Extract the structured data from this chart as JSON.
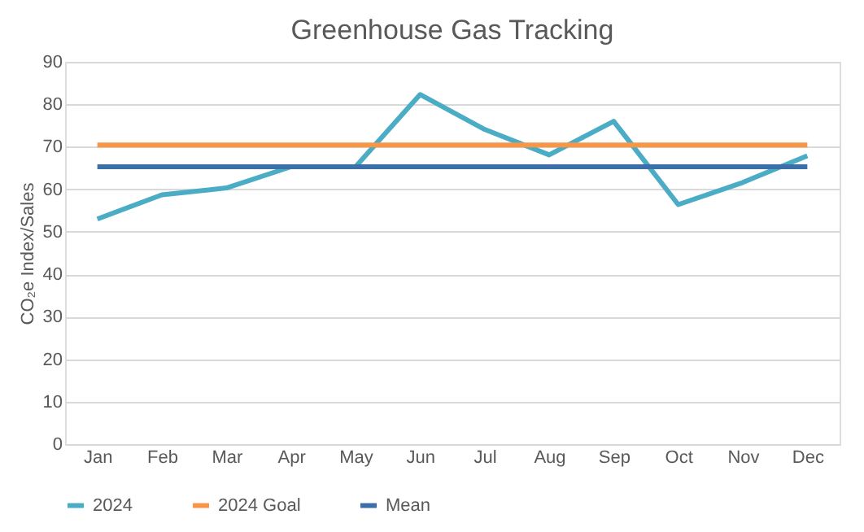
{
  "chart_data": {
    "type": "line",
    "title": "Greenhouse Gas Tracking",
    "ylabel": "CO₂e Index/Sales",
    "categories": [
      "Jan",
      "Feb",
      "Mar",
      "Apr",
      "May",
      "Jun",
      "Jul",
      "Aug",
      "Sep",
      "Oct",
      "Nov",
      "Dec"
    ],
    "series": [
      {
        "name": "2024",
        "color": "#4bacc6",
        "values": [
          53,
          58.7,
          60.3,
          65.3,
          65.3,
          82.3,
          74.1,
          68.1,
          76,
          56.4,
          61.6,
          67.9
        ]
      },
      {
        "name": "2024 Goal",
        "color": "#f79646",
        "values": [
          70.4,
          70.4,
          70.4,
          70.4,
          70.4,
          70.4,
          70.4,
          70.4,
          70.4,
          70.4,
          70.4,
          70.4
        ]
      },
      {
        "name": "Mean",
        "color": "#3c6ea8",
        "values": [
          65.3,
          65.3,
          65.3,
          65.3,
          65.3,
          65.3,
          65.3,
          65.3,
          65.3,
          65.3,
          65.3,
          65.3
        ]
      }
    ],
    "ylim": [
      0,
      90
    ],
    "yticks": [
      0,
      10,
      20,
      30,
      40,
      50,
      60,
      70,
      80,
      90
    ],
    "grid": "y",
    "legend": "bottom",
    "marker": "none",
    "line_style": "solid"
  }
}
